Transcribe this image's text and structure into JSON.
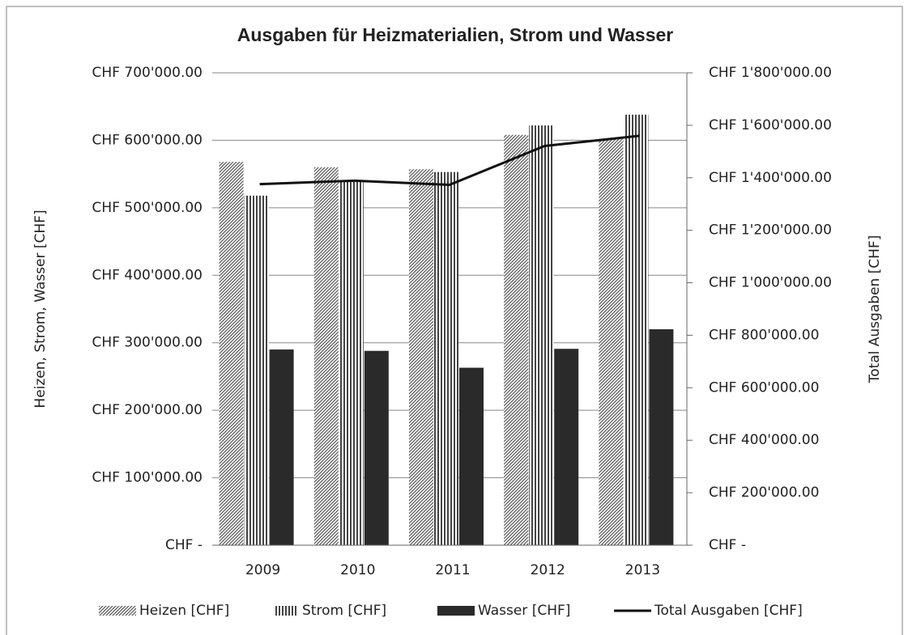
{
  "chart_data": {
    "type": "bar",
    "title": "Ausgaben für Heizmaterialien, Strom und Wasser",
    "y_label": "Heizen, Strom, Wasser [CHF]",
    "y2_label": "Total Ausgaben [CHF]",
    "categories": [
      "2009",
      "2010",
      "2011",
      "2012",
      "2013"
    ],
    "series": [
      {
        "name": "Heizen [CHF]",
        "color": "#555555",
        "pattern": "diagonal",
        "values": [
          568000,
          560000,
          557000,
          608000,
          602000
        ]
      },
      {
        "name": "Strom [CHF]",
        "color": "#444444",
        "pattern": "vertical",
        "values": [
          518000,
          541000,
          553000,
          622000,
          638000
        ]
      },
      {
        "name": "Wasser [CHF]",
        "color": "#2a2a2a",
        "pattern": "solid",
        "values": [
          290000,
          288000,
          263000,
          291000,
          320000
        ]
      },
      {
        "name": "Total Ausgaben [CHF]",
        "color": "#111111",
        "type": "line",
        "axis": "y2",
        "values": [
          1376000,
          1389000,
          1373000,
          1521000,
          1560000
        ]
      }
    ],
    "ylim": [
      0,
      700000
    ],
    "yticks": [
      {
        "value": 0,
        "label": "CHF -"
      },
      {
        "value": 100000,
        "label": "CHF 100'000.00"
      },
      {
        "value": 200000,
        "label": "CHF 200'000.00"
      },
      {
        "value": 300000,
        "label": "CHF 300'000.00"
      },
      {
        "value": 400000,
        "label": "CHF 400'000.00"
      },
      {
        "value": 500000,
        "label": "CHF 500'000.00"
      },
      {
        "value": 600000,
        "label": "CHF 600'000.00"
      },
      {
        "value": 700000,
        "label": "CHF 700'000.00"
      }
    ],
    "y2lim": [
      0,
      1800000
    ],
    "y2ticks": [
      {
        "value": 0,
        "label": "CHF -"
      },
      {
        "value": 200000,
        "label": "CHF 200'000.00"
      },
      {
        "value": 400000,
        "label": "CHF 400'000.00"
      },
      {
        "value": 600000,
        "label": "CHF 600'000.00"
      },
      {
        "value": 800000,
        "label": "CHF 800'000.00"
      },
      {
        "value": 1000000,
        "label": "CHF 1'000'000.00"
      },
      {
        "value": 1200000,
        "label": "CHF 1'200'000.00"
      },
      {
        "value": 1400000,
        "label": "CHF 1'400'000.00"
      },
      {
        "value": 1600000,
        "label": "CHF 1'600'000.00"
      },
      {
        "value": 1800000,
        "label": "CHF 1'800'000.00"
      }
    ],
    "grid": true,
    "legend": "bottom"
  }
}
